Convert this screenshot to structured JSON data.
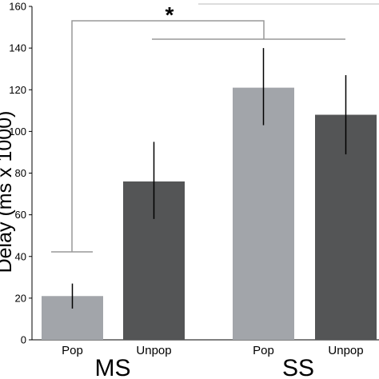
{
  "chart_data": {
    "type": "bar",
    "categories": [
      "Pop",
      "Unpop",
      "Pop",
      "Unpop"
    ],
    "groups": [
      {
        "label": "MS",
        "categories": [
          "Pop",
          "Unpop"
        ]
      },
      {
        "label": "SS",
        "categories": [
          "Pop",
          "Unpop"
        ]
      }
    ],
    "values": [
      21,
      76,
      121,
      108
    ],
    "error_low": [
      15,
      58,
      103,
      89
    ],
    "error_high": [
      27,
      95,
      140,
      127
    ],
    "bar_colors": [
      "#a2a5aa",
      "#545556",
      "#a2a5aa",
      "#545556"
    ],
    "ylabel": "Delay (ms x 1000)",
    "ylim": [
      0,
      160
    ],
    "yticks": [
      0,
      20,
      40,
      60,
      80,
      100,
      120,
      140,
      160
    ],
    "grid": false,
    "significance": {
      "label": "*"
    }
  }
}
